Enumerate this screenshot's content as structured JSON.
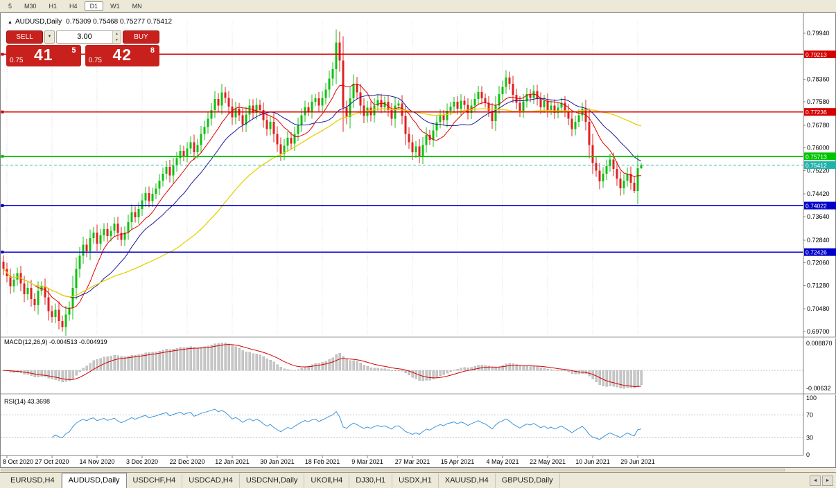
{
  "toolbar": {
    "timeframes": [
      "5",
      "M30",
      "H1",
      "H4",
      "D1",
      "W1",
      "MN"
    ],
    "active": "D1"
  },
  "chart": {
    "title_symbol": "AUDUSD,Daily",
    "ohlc": "0.75309 0.75468 0.75277 0.75412"
  },
  "icons": {
    "collapse": "▲",
    "dropdown": "▼",
    "spin_up": "▲",
    "spin_down": "▼",
    "tab_scroll_left": "◄",
    "tab_scroll_right": "►"
  },
  "one_click": {
    "sell_label": "SELL",
    "buy_label": "BUY",
    "volume": "3.00",
    "sell_price": {
      "small": "0.75",
      "big": "41",
      "sup": "5"
    },
    "buy_price": {
      "small": "0.75",
      "big": "42",
      "sup": "8"
    }
  },
  "price_axis": [
    "0.79940",
    "0.79210",
    "0.78360",
    "0.77580",
    "0.76780",
    "0.76000",
    "0.75220",
    "0.74420",
    "0.73640",
    "0.72840",
    "0.72060",
    "0.71280",
    "0.70480",
    "0.69700"
  ],
  "hlines": [
    {
      "value": 0.79213,
      "label": "0.79213",
      "color": "#d40000",
      "width": 1.5
    },
    {
      "value": 0.77236,
      "label": "0.77236",
      "color": "#d40000",
      "width": 1.5
    },
    {
      "value": 0.75713,
      "label": "0.75713",
      "color": "#00c400",
      "width": 2
    },
    {
      "value": 0.74022,
      "label": "0.74022",
      "color": "#0000c8",
      "width": 1.5
    },
    {
      "value": 0.72426,
      "label": "0.72426",
      "color": "#0000c8",
      "width": 1.5
    }
  ],
  "bid": {
    "value": 0.75412,
    "label": "0.75412",
    "color": "#20b2aa"
  },
  "macd": {
    "header": "MACD(12,26,9) -0.004513 -0.004919",
    "fast": 12,
    "slow": 26,
    "signal": 9,
    "axis_top": "0.008870",
    "axis_bottom": "-0.00632"
  },
  "rsi": {
    "header": "RSI(14) 43.3698",
    "period": 14,
    "levels": [
      100,
      70,
      30,
      0
    ],
    "axis_labels": [
      "100",
      "70",
      "30",
      "0"
    ],
    "dashed_levels": [
      70,
      30
    ]
  },
  "date_axis": [
    "8 Oct 2020",
    "27 Oct 2020",
    "14 Nov 2020",
    "3 Dec 2020",
    "22 Dec 2020",
    "12 Jan 2021",
    "30 Jan 2021",
    "18 Feb 2021",
    "9 Mar 2021",
    "27 Mar 2021",
    "15 Apr 2021",
    "4 May 2021",
    "22 May 2021",
    "10 Jun 2021",
    "29 Jun 2021"
  ],
  "tabs": [
    "EURUSD,H4",
    "AUDUSD,Daily",
    "USDCHF,H4",
    "USDCAD,H4",
    "USDCNH,Daily",
    "UKOil,H4",
    "DJ30,H1",
    "USDX,H1",
    "XAUUSD,H4",
    "GBPUSD,Daily"
  ],
  "active_tab": "AUDUSD,Daily",
  "chart_data": {
    "type": "candlestick",
    "symbol": "AUDUSD",
    "timeframe": "Daily",
    "y_range": [
      0.6958,
      0.8034
    ],
    "open_first": 0.721,
    "closes": [
      0.7185,
      0.716,
      0.7125,
      0.7148,
      0.717,
      0.7135,
      0.7098,
      0.712,
      0.7082,
      0.706,
      0.711,
      0.7125,
      0.7088,
      0.704,
      0.702,
      0.7045,
      0.7005,
      0.6985,
      0.7028,
      0.7052,
      0.712,
      0.7185,
      0.723,
      0.7268,
      0.7245,
      0.729,
      0.731,
      0.7272,
      0.73,
      0.7322,
      0.7298,
      0.7315,
      0.734,
      0.7308,
      0.7285,
      0.731,
      0.7345,
      0.738,
      0.7362,
      0.739,
      0.742,
      0.7445,
      0.7418,
      0.7442,
      0.746,
      0.7488,
      0.7512,
      0.7535,
      0.7505,
      0.754,
      0.7565,
      0.759,
      0.7572,
      0.7598,
      0.762,
      0.7585,
      0.761,
      0.7648,
      0.7672,
      0.77,
      0.773,
      0.7768,
      0.7745,
      0.779,
      0.7772,
      0.7742,
      0.7705,
      0.7735,
      0.7712,
      0.768,
      0.7715,
      0.7745,
      0.772,
      0.7748,
      0.773,
      0.7695,
      0.7665,
      0.769,
      0.7648,
      0.7612,
      0.758,
      0.7608,
      0.7635,
      0.7615,
      0.7648,
      0.768,
      0.7712,
      0.774,
      0.7725,
      0.7758,
      0.777,
      0.7745,
      0.7772,
      0.78,
      0.7838,
      0.787,
      0.7962,
      0.79,
      0.7738,
      0.7706,
      0.777,
      0.782,
      0.779,
      0.7745,
      0.771,
      0.7738,
      0.7712,
      0.7745,
      0.7765,
      0.774,
      0.7758,
      0.773,
      0.77,
      0.7745,
      0.7752,
      0.771,
      0.7648,
      0.762,
      0.7585,
      0.7605,
      0.7572,
      0.761,
      0.7645,
      0.7628,
      0.766,
      0.7688,
      0.7712,
      0.7695,
      0.7728,
      0.7742,
      0.7758,
      0.7735,
      0.7762,
      0.7748,
      0.772,
      0.7745,
      0.7768,
      0.7792,
      0.777,
      0.7755,
      0.7728,
      0.7692,
      0.7745,
      0.7785,
      0.781,
      0.7842,
      0.782,
      0.7782,
      0.7755,
      0.7728,
      0.776,
      0.7785,
      0.7772,
      0.7795,
      0.7768,
      0.774,
      0.7762,
      0.773,
      0.7745,
      0.772,
      0.7738,
      0.7755,
      0.7728,
      0.77,
      0.7665,
      0.769,
      0.7712,
      0.7735,
      0.769,
      0.761,
      0.7548,
      0.7522,
      0.7485,
      0.7512,
      0.7538,
      0.756,
      0.7528,
      0.7495,
      0.7462,
      0.7488,
      0.7512,
      0.748,
      0.7452,
      0.75309,
      0.75412
    ],
    "wick_base": 0.001,
    "wick_factor": 0.45,
    "overrides": {
      "17": {
        "low": 0.697
      },
      "96": {
        "high": 0.8007
      },
      "182": {
        "low": 0.7445
      },
      "184": {
        "high": 0.75468,
        "low": 0.75277
      }
    },
    "ma": [
      {
        "period": 10,
        "color": "#e00000",
        "width": 1
      },
      {
        "period": 20,
        "color": "#1a1a99",
        "width": 1
      },
      {
        "period": 50,
        "color": "#e8d000",
        "width": 1.3
      }
    ],
    "colors": {
      "up": "#10c010",
      "down": "#e02020",
      "macd_hist": "#c6c6c6",
      "macd_hist_stroke": "#ababab",
      "macd_signal": "#d40000",
      "rsi_line": "#3c96dc",
      "grid": "#dcdcdc",
      "axis": "#808080",
      "level_dash": "#c0c0c0"
    }
  }
}
